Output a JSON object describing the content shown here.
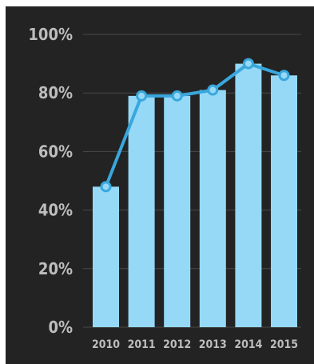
{
  "chart_data": {
    "type": "bar",
    "categories": [
      "2010",
      "2011",
      "2012",
      "2013",
      "2014",
      "2015"
    ],
    "series": [
      {
        "values": [
          48,
          79,
          79,
          81,
          90,
          86
        ]
      }
    ],
    "overlay_line": {
      "values": [
        48,
        79,
        79,
        81,
        90,
        86
      ]
    },
    "title": "",
    "xlabel": "",
    "ylabel": "",
    "ylim": [
      0,
      100
    ],
    "yticks": [
      {
        "value": 0,
        "label": "0%"
      },
      {
        "value": 20,
        "label": "20%"
      },
      {
        "value": 40,
        "label": "40%"
      },
      {
        "value": 60,
        "label": "60%"
      },
      {
        "value": 80,
        "label": "80%"
      },
      {
        "value": 100,
        "label": "100%"
      }
    ],
    "grid": true,
    "legend": "none",
    "colors": {
      "background": "#232323",
      "bar": "#95d9f7",
      "line": "#39a7dd",
      "marker_fill": "#95d9f7",
      "grid": "#4a4a4a",
      "tick_text": "#bdbdbd"
    }
  }
}
